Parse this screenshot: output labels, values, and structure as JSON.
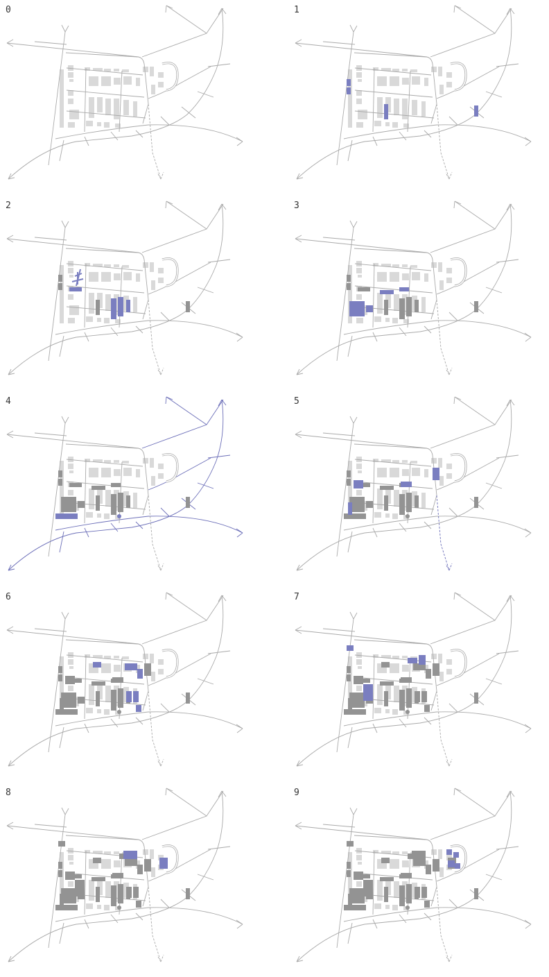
{
  "colors": {
    "road": "#a9a9a9",
    "road_highlight": "#6b6eb8",
    "block_existing": "#d9d9d9",
    "block_built": "#939393",
    "block_new": "#7a7ec0"
  },
  "panels": [
    {
      "label": "0",
      "highlight": "none",
      "new": [],
      "built": []
    },
    {
      "label": "1",
      "highlight": "none",
      "new": [
        "w1",
        "w2",
        "c4",
        "e1"
      ],
      "built": []
    },
    {
      "label": "2",
      "highlight": "plaza",
      "new": [
        "w3",
        "c1",
        "c2",
        "c3",
        "plaza"
      ],
      "built": [
        "w1",
        "w2",
        "c4",
        "e1"
      ]
    },
    {
      "label": "3",
      "highlight": "none",
      "new": [
        "sq1",
        "s2",
        "c5",
        "c6"
      ],
      "built": [
        "w1",
        "w2",
        "w3",
        "c1",
        "c2",
        "c3",
        "c4",
        "e1"
      ]
    },
    {
      "label": "4",
      "highlight": "boulevard",
      "new": [
        "b1",
        "dot"
      ],
      "built": [
        "w1",
        "w2",
        "w3",
        "c1",
        "c2",
        "c3",
        "c4",
        "c5",
        "c6",
        "sq1",
        "s2",
        "e1"
      ]
    },
    {
      "label": "5",
      "highlight": "dashed-avenue",
      "new": [
        "w4",
        "w5",
        "c7",
        "n1"
      ],
      "built": [
        "w1",
        "w2",
        "w3",
        "c1",
        "c2",
        "c3",
        "c4",
        "c5",
        "c6",
        "sq1",
        "s2",
        "e1",
        "b1",
        "dot"
      ]
    },
    {
      "label": "6",
      "highlight": "none",
      "new": [
        "n2",
        "n3",
        "n4",
        "c8",
        "c9",
        "c10"
      ],
      "built": [
        "w1",
        "w2",
        "w3",
        "w4",
        "w5",
        "c1",
        "c2",
        "c3",
        "c4",
        "c5",
        "c6",
        "c7",
        "sq1",
        "s2",
        "e1",
        "b1",
        "dot",
        "n1"
      ]
    },
    {
      "label": "7",
      "highlight": "none",
      "new": [
        "w6",
        "c11",
        "n5",
        "n6"
      ],
      "built": [
        "w1",
        "w2",
        "w3",
        "w4",
        "w5",
        "c1",
        "c2",
        "c3",
        "c4",
        "c5",
        "c6",
        "c7",
        "c8",
        "c9",
        "c10",
        "sq1",
        "s2",
        "e1",
        "b1",
        "dot",
        "n1",
        "n2",
        "n3",
        "n4"
      ]
    },
    {
      "label": "8",
      "highlight": "none",
      "new": [
        "n7",
        "n8"
      ],
      "built": [
        "w1",
        "w2",
        "w3",
        "w4",
        "w5",
        "w6",
        "c1",
        "c2",
        "c3",
        "c4",
        "c5",
        "c6",
        "c7",
        "c8",
        "c9",
        "c10",
        "c11",
        "sq1",
        "s2",
        "e1",
        "b1",
        "dot",
        "n1",
        "n2",
        "n3",
        "n4",
        "n5",
        "n6"
      ]
    },
    {
      "label": "9",
      "highlight": "none",
      "new": [
        "r1",
        "r2",
        "r3",
        "r4"
      ],
      "built": [
        "w1",
        "w2",
        "w3",
        "w4",
        "w5",
        "w6",
        "c1",
        "c2",
        "c3",
        "c4",
        "c5",
        "c6",
        "c7",
        "c8",
        "c9",
        "c10",
        "c11",
        "sq1",
        "s2",
        "e1",
        "b1",
        "dot",
        "n1",
        "n2",
        "n3",
        "n4",
        "n5",
        "n6",
        "n7",
        "n8"
      ]
    }
  ]
}
